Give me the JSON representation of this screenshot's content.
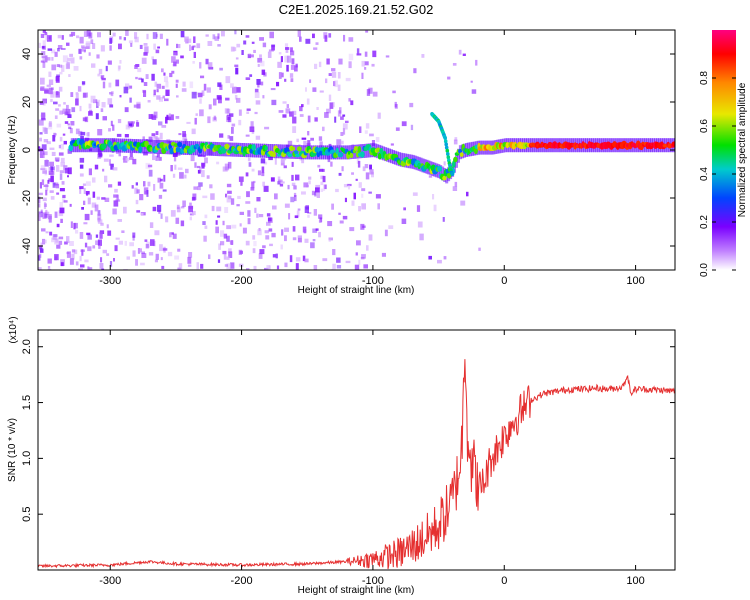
{
  "title": "C2E1.2025.169.21.52.G02",
  "chart_data": [
    {
      "type": "heatmap",
      "xlabel": "Height of straight line (km)",
      "ylabel": "Frequency (Hz)",
      "xlim": [
        -355,
        130
      ],
      "ylim": [
        -50,
        50
      ],
      "xticks": [
        -300,
        -200,
        -100,
        0,
        100
      ],
      "yticks": [
        -40,
        -20,
        0,
        20,
        40
      ],
      "colorbar": {
        "label": "Normalized spectral amplitude",
        "range": [
          0,
          1
        ],
        "ticks": [
          "0.0",
          "0.2",
          "0.4",
          "0.6",
          "0.8"
        ],
        "colors": [
          "#ffffff",
          "#7a00ff",
          "#0044ff",
          "#00cccc",
          "#00e000",
          "#e8e800",
          "#ff8800",
          "#ff0000",
          "#ff0080"
        ]
      },
      "trace": {
        "x": [
          -330,
          -300,
          -250,
          -200,
          -150,
          -120,
          -100,
          -90,
          -80,
          -70,
          -60,
          -50,
          -45,
          -40,
          -35,
          -30,
          -20,
          -10,
          0,
          20,
          50,
          80,
          100,
          130
        ],
        "y": [
          2,
          2,
          1,
          0,
          -1,
          -1,
          0,
          -2,
          -4,
          -5,
          -7,
          -9,
          -11,
          -8,
          -1,
          0,
          1,
          1,
          2,
          2,
          2,
          2,
          2,
          2
        ]
      },
      "branch": {
        "x": [
          -55,
          -50,
          -45,
          -42,
          -40
        ],
        "y": [
          15,
          12,
          5,
          -5,
          -10
        ]
      }
    },
    {
      "type": "line",
      "xlabel": "Height of straight line (km)",
      "ylabel": "SNR (10 * v/v)",
      "y_multiplier": "(x10⁴)",
      "xlim": [
        -355,
        130
      ],
      "ylim": [
        0,
        2.15
      ],
      "xticks": [
        -300,
        -200,
        -100,
        0,
        100
      ],
      "yticks": [
        0.5,
        1.0,
        1.5,
        2.0
      ],
      "color": "#e53030",
      "series": [
        {
          "x": [
            -355,
            -300,
            -270,
            -250,
            -200,
            -150,
            -120,
            -100,
            -80,
            -70,
            -60,
            -50,
            -45,
            -40,
            -35,
            -32,
            -30,
            -28,
            -25,
            -20,
            -15,
            -10,
            -5,
            0,
            5,
            10,
            15,
            20,
            30,
            40,
            50,
            60,
            70,
            80,
            90,
            94,
            96,
            100,
            110,
            120,
            130
          ],
          "y": [
            0.03,
            0.04,
            0.07,
            0.05,
            0.04,
            0.05,
            0.07,
            0.08,
            0.12,
            0.18,
            0.25,
            0.35,
            0.45,
            0.55,
            0.8,
            1.1,
            2.05,
            1.2,
            0.9,
            0.7,
            0.8,
            1.0,
            1.1,
            1.2,
            1.3,
            1.38,
            1.45,
            1.52,
            1.58,
            1.6,
            1.62,
            1.62,
            1.63,
            1.62,
            1.64,
            1.75,
            1.58,
            1.62,
            1.62,
            1.61,
            1.6
          ]
        }
      ]
    }
  ]
}
